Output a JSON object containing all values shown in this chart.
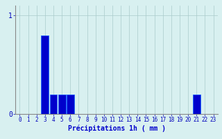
{
  "xlabel": "Précipitations 1h ( mm )",
  "categories": [
    0,
    1,
    2,
    3,
    4,
    5,
    6,
    7,
    8,
    9,
    10,
    11,
    12,
    13,
    14,
    15,
    16,
    17,
    18,
    19,
    20,
    21,
    22,
    23
  ],
  "values": [
    0,
    0,
    0,
    0.8,
    0.2,
    0.2,
    0.2,
    0,
    0,
    0,
    0,
    0,
    0,
    0,
    0,
    0,
    0,
    0,
    0,
    0,
    0,
    0.2,
    0,
    0
  ],
  "bar_color": "#0000cc",
  "bar_edge_color": "#1a66ff",
  "background_color": "#d8f0f0",
  "grid_color": "#aacccc",
  "axis_label_color": "#0000cc",
  "tick_color": "#0000bb",
  "ylim": [
    0,
    1.1
  ],
  "yticks": [
    0,
    1
  ],
  "xlabel_fontsize": 7,
  "tick_fontsize": 5.5
}
